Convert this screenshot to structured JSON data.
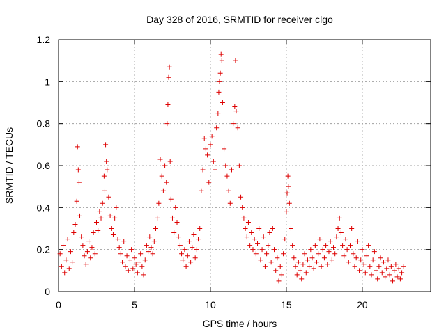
{
  "chart_data": {
    "type": "scatter",
    "title": "Day 328 of 2016, SRMTID for receiver clgo",
    "xlabel": "GPS time / hours",
    "ylabel": "SRMTID / TECUs",
    "xlim": [
      0,
      24.5
    ],
    "ylim": [
      0,
      1.2
    ],
    "xticks": [
      0,
      5,
      10,
      15,
      20
    ],
    "xtick_labels": [
      "0",
      "5",
      "10",
      "15",
      "20"
    ],
    "yticks": [
      0,
      0.2,
      0.4,
      0.6,
      0.8,
      1.0,
      1.2
    ],
    "ytick_labels": [
      "0",
      "0.2",
      "0.4",
      "0.6",
      "0.8",
      "1",
      "1.2"
    ],
    "grid": true,
    "marker": "+",
    "color": "#dd0000",
    "series": [
      {
        "name": "SRMTID",
        "points": [
          [
            0.1,
            0.18
          ],
          [
            0.2,
            0.12
          ],
          [
            0.3,
            0.22
          ],
          [
            0.4,
            0.09
          ],
          [
            0.5,
            0.15
          ],
          [
            0.6,
            0.25
          ],
          [
            0.7,
            0.11
          ],
          [
            0.8,
            0.19
          ],
          [
            0.9,
            0.14
          ],
          [
            1.0,
            0.28
          ],
          [
            1.1,
            0.32
          ],
          [
            1.2,
            0.43
          ],
          [
            1.25,
            0.69
          ],
          [
            1.3,
            0.58
          ],
          [
            1.35,
            0.52
          ],
          [
            1.4,
            0.36
          ],
          [
            1.5,
            0.26
          ],
          [
            1.6,
            0.22
          ],
          [
            1.7,
            0.17
          ],
          [
            1.8,
            0.13
          ],
          [
            1.9,
            0.19
          ],
          [
            2.0,
            0.24
          ],
          [
            2.1,
            0.16
          ],
          [
            2.2,
            0.21
          ],
          [
            2.3,
            0.28
          ],
          [
            2.4,
            0.18
          ],
          [
            2.5,
            0.33
          ],
          [
            2.6,
            0.29
          ],
          [
            2.7,
            0.38
          ],
          [
            2.8,
            0.35
          ],
          [
            2.9,
            0.42
          ],
          [
            3.0,
            0.55
          ],
          [
            3.05,
            0.48
          ],
          [
            3.1,
            0.7
          ],
          [
            3.15,
            0.62
          ],
          [
            3.2,
            0.58
          ],
          [
            3.3,
            0.45
          ],
          [
            3.4,
            0.36
          ],
          [
            3.5,
            0.3
          ],
          [
            3.6,
            0.27
          ],
          [
            3.7,
            0.35
          ],
          [
            3.8,
            0.4
          ],
          [
            3.9,
            0.25
          ],
          [
            4.0,
            0.21
          ],
          [
            4.1,
            0.18
          ],
          [
            4.2,
            0.14
          ],
          [
            4.3,
            0.24
          ],
          [
            4.4,
            0.12
          ],
          [
            4.5,
            0.17
          ],
          [
            4.6,
            0.1
          ],
          [
            4.7,
            0.15
          ],
          [
            4.8,
            0.2
          ],
          [
            4.9,
            0.11
          ],
          [
            5.0,
            0.16
          ],
          [
            5.1,
            0.13
          ],
          [
            5.2,
            0.09
          ],
          [
            5.3,
            0.14
          ],
          [
            5.4,
            0.18
          ],
          [
            5.5,
            0.12
          ],
          [
            5.6,
            0.08
          ],
          [
            5.7,
            0.15
          ],
          [
            5.8,
            0.22
          ],
          [
            5.9,
            0.19
          ],
          [
            6.0,
            0.26
          ],
          [
            6.1,
            0.21
          ],
          [
            6.2,
            0.18
          ],
          [
            6.3,
            0.24
          ],
          [
            6.4,
            0.3
          ],
          [
            6.5,
            0.35
          ],
          [
            6.6,
            0.42
          ],
          [
            6.7,
            0.63
          ],
          [
            6.8,
            0.55
          ],
          [
            6.9,
            0.48
          ],
          [
            7.0,
            0.6
          ],
          [
            7.1,
            0.52
          ],
          [
            7.15,
            0.8
          ],
          [
            7.2,
            0.89
          ],
          [
            7.25,
            1.02
          ],
          [
            7.3,
            1.07
          ],
          [
            7.35,
            0.62
          ],
          [
            7.4,
            0.44
          ],
          [
            7.5,
            0.35
          ],
          [
            7.6,
            0.28
          ],
          [
            7.7,
            0.4
          ],
          [
            7.8,
            0.33
          ],
          [
            7.9,
            0.26
          ],
          [
            8.0,
            0.22
          ],
          [
            8.1,
            0.18
          ],
          [
            8.2,
            0.15
          ],
          [
            8.3,
            0.2
          ],
          [
            8.4,
            0.12
          ],
          [
            8.5,
            0.17
          ],
          [
            8.6,
            0.24
          ],
          [
            8.7,
            0.14
          ],
          [
            8.8,
            0.21
          ],
          [
            8.9,
            0.27
          ],
          [
            9.0,
            0.16
          ],
          [
            9.1,
            0.2
          ],
          [
            9.2,
            0.25
          ],
          [
            9.3,
            0.3
          ],
          [
            9.4,
            0.48
          ],
          [
            9.5,
            0.58
          ],
          [
            9.6,
            0.73
          ],
          [
            9.7,
            0.68
          ],
          [
            9.8,
            0.65
          ],
          [
            9.9,
            0.52
          ],
          [
            10.0,
            0.7
          ],
          [
            10.1,
            0.74
          ],
          [
            10.2,
            0.62
          ],
          [
            10.3,
            0.58
          ],
          [
            10.4,
            0.78
          ],
          [
            10.5,
            0.85
          ],
          [
            10.55,
            0.95
          ],
          [
            10.6,
            1.0
          ],
          [
            10.65,
            1.04
          ],
          [
            10.7,
            1.13
          ],
          [
            10.75,
            1.1
          ],
          [
            10.8,
            0.9
          ],
          [
            10.9,
            0.68
          ],
          [
            11.0,
            0.6
          ],
          [
            11.1,
            0.55
          ],
          [
            11.2,
            0.48
          ],
          [
            11.3,
            0.42
          ],
          [
            11.4,
            0.58
          ],
          [
            11.5,
            0.8
          ],
          [
            11.6,
            0.88
          ],
          [
            11.65,
            1.1
          ],
          [
            11.7,
            0.86
          ],
          [
            11.8,
            0.78
          ],
          [
            11.9,
            0.6
          ],
          [
            12.0,
            0.45
          ],
          [
            12.1,
            0.4
          ],
          [
            12.2,
            0.35
          ],
          [
            12.3,
            0.3
          ],
          [
            12.4,
            0.26
          ],
          [
            12.5,
            0.33
          ],
          [
            12.6,
            0.22
          ],
          [
            12.7,
            0.28
          ],
          [
            12.8,
            0.2
          ],
          [
            12.9,
            0.25
          ],
          [
            13.0,
            0.18
          ],
          [
            13.1,
            0.23
          ],
          [
            13.2,
            0.3
          ],
          [
            13.3,
            0.15
          ],
          [
            13.4,
            0.2
          ],
          [
            13.5,
            0.26
          ],
          [
            13.6,
            0.12
          ],
          [
            13.7,
            0.18
          ],
          [
            13.8,
            0.22
          ],
          [
            13.9,
            0.28
          ],
          [
            14.0,
            0.14
          ],
          [
            14.1,
            0.3
          ],
          [
            14.2,
            0.2
          ],
          [
            14.3,
            0.1
          ],
          [
            14.4,
            0.16
          ],
          [
            14.5,
            0.05
          ],
          [
            14.6,
            0.12
          ],
          [
            14.7,
            0.08
          ],
          [
            14.8,
            0.18
          ],
          [
            14.9,
            0.25
          ],
          [
            15.0,
            0.38
          ],
          [
            15.05,
            0.47
          ],
          [
            15.1,
            0.55
          ],
          [
            15.15,
            0.5
          ],
          [
            15.2,
            0.42
          ],
          [
            15.3,
            0.3
          ],
          [
            15.4,
            0.22
          ],
          [
            15.5,
            0.16
          ],
          [
            15.6,
            0.12
          ],
          [
            15.7,
            0.08
          ],
          [
            15.8,
            0.14
          ],
          [
            15.9,
            0.1
          ],
          [
            16.0,
            0.06
          ],
          [
            16.1,
            0.13
          ],
          [
            16.2,
            0.18
          ],
          [
            16.3,
            0.09
          ],
          [
            16.4,
            0.15
          ],
          [
            16.5,
            0.12
          ],
          [
            16.6,
            0.2
          ],
          [
            16.7,
            0.16
          ],
          [
            16.8,
            0.11
          ],
          [
            16.9,
            0.22
          ],
          [
            17.0,
            0.14
          ],
          [
            17.1,
            0.18
          ],
          [
            17.2,
            0.25
          ],
          [
            17.3,
            0.12
          ],
          [
            17.4,
            0.2
          ],
          [
            17.5,
            0.16
          ],
          [
            17.6,
            0.22
          ],
          [
            17.7,
            0.13
          ],
          [
            17.8,
            0.19
          ],
          [
            17.9,
            0.24
          ],
          [
            18.0,
            0.15
          ],
          [
            18.1,
            0.21
          ],
          [
            18.2,
            0.18
          ],
          [
            18.3,
            0.26
          ],
          [
            18.4,
            0.3
          ],
          [
            18.5,
            0.35
          ],
          [
            18.6,
            0.28
          ],
          [
            18.7,
            0.22
          ],
          [
            18.8,
            0.17
          ],
          [
            18.9,
            0.25
          ],
          [
            19.0,
            0.2
          ],
          [
            19.1,
            0.14
          ],
          [
            19.2,
            0.22
          ],
          [
            19.3,
            0.3
          ],
          [
            19.4,
            0.18
          ],
          [
            19.5,
            0.12
          ],
          [
            19.6,
            0.16
          ],
          [
            19.7,
            0.24
          ],
          [
            19.8,
            0.1
          ],
          [
            19.9,
            0.15
          ],
          [
            20.0,
            0.2
          ],
          [
            20.1,
            0.13
          ],
          [
            20.2,
            0.09
          ],
          [
            20.3,
            0.17
          ],
          [
            20.4,
            0.22
          ],
          [
            20.5,
            0.12
          ],
          [
            20.6,
            0.08
          ],
          [
            20.7,
            0.15
          ],
          [
            20.8,
            0.19
          ],
          [
            20.9,
            0.1
          ],
          [
            21.0,
            0.06
          ],
          [
            21.1,
            0.12
          ],
          [
            21.2,
            0.16
          ],
          [
            21.3,
            0.09
          ],
          [
            21.4,
            0.14
          ],
          [
            21.5,
            0.07
          ],
          [
            21.6,
            0.11
          ],
          [
            21.7,
            0.15
          ],
          [
            21.8,
            0.08
          ],
          [
            21.9,
            0.12
          ],
          [
            22.0,
            0.05
          ],
          [
            22.1,
            0.1
          ],
          [
            22.2,
            0.13
          ],
          [
            22.3,
            0.07
          ],
          [
            22.4,
            0.11
          ],
          [
            22.5,
            0.06
          ],
          [
            22.6,
            0.09
          ],
          [
            22.7,
            0.12
          ]
        ]
      }
    ]
  }
}
